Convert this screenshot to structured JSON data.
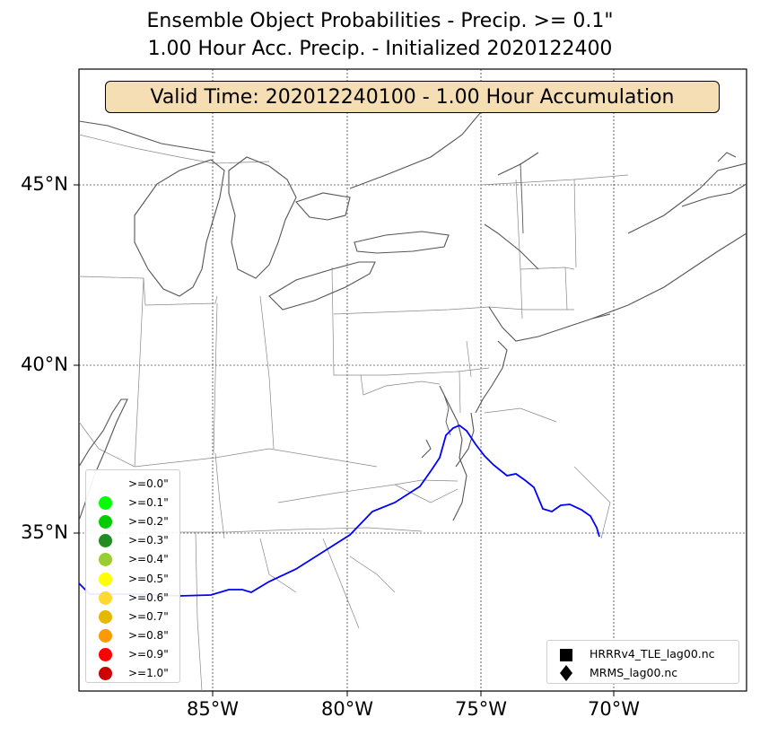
{
  "title": {
    "line1": "Ensemble Object Probabilities - Precip. >= 0.1\"",
    "line2": "1.00 Hour Acc. Precip. - Initialized 2020122400"
  },
  "valid_time_label": "Valid Time: 202012240100 - 1.00 Hour Accumulation",
  "axes": {
    "lat_labels": [
      "45°N",
      "40°N",
      "35°N"
    ],
    "lon_labels": [
      "85°W",
      "80°W",
      "75°W",
      "70°W"
    ]
  },
  "legend_thresholds": [
    {
      "label": ">=0.0\"",
      "color": "#ffffff"
    },
    {
      "label": ">=0.1\"",
      "color": "#00ff00"
    },
    {
      "label": ">=0.2\"",
      "color": "#00cd00"
    },
    {
      "label": ">=0.3\"",
      "color": "#228b22"
    },
    {
      "label": ">=0.4\"",
      "color": "#9acd32"
    },
    {
      "label": ">=0.5\"",
      "color": "#ffff00"
    },
    {
      "label": ">=0.6\"",
      "color": "#ffd92f"
    },
    {
      "label": ">=0.7\"",
      "color": "#e6b800"
    },
    {
      "label": ">=0.8\"",
      "color": "#ff9900"
    },
    {
      "label": ">=0.9\"",
      "color": "#ff0000"
    },
    {
      "label": ">=1.0\"",
      "color": "#cc0000"
    }
  ],
  "legend_sources": [
    {
      "label": "HRRRv4_TLE_lag00.nc",
      "symbol": "square"
    },
    {
      "label": "MRMS_lag00.nc",
      "symbol": "diamond"
    }
  ],
  "colors": {
    "valid_box_bg": "#f5deb3",
    "boundary_line": "#0000ff",
    "coastline": "#555555",
    "state_lines": "#888888"
  }
}
